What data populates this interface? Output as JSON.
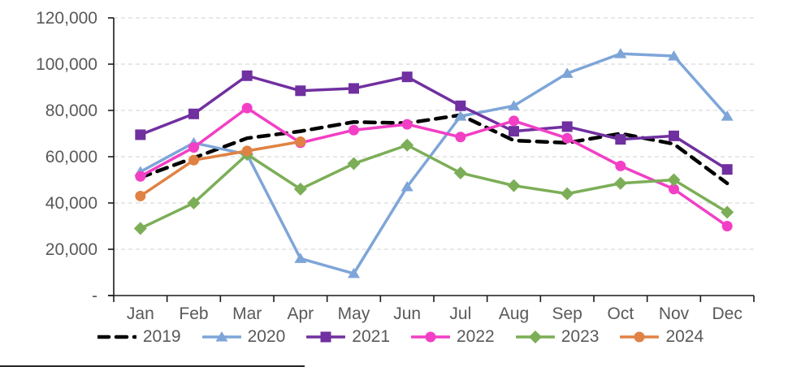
{
  "chart_data": {
    "type": "line",
    "title": "",
    "xlabel": "",
    "ylabel": "",
    "categories": [
      "Jan",
      "Feb",
      "Mar",
      "Apr",
      "May",
      "Jun",
      "Jul",
      "Aug",
      "Sep",
      "Oct",
      "Nov",
      "Dec"
    ],
    "y_tick_labels": [
      "120,000",
      "100,000",
      "80,000",
      "60,000",
      "40,000",
      "20,000",
      "-"
    ],
    "y_tick_values": [
      120000,
      100000,
      80000,
      60000,
      40000,
      20000,
      0
    ],
    "ylim": [
      0,
      120000
    ],
    "grid": "horizontal-dashed",
    "legend_position": "bottom",
    "colors": {
      "grid": "#d9d9d9",
      "axis": "#1a1a1a",
      "tick_label": "#595959"
    },
    "series": [
      {
        "name": "2019",
        "color": "#000000",
        "style": "dashed",
        "marker": "none",
        "values": [
          51000,
          59500,
          68000,
          71000,
          75000,
          74500,
          78000,
          67000,
          66000,
          70000,
          65500,
          48500
        ]
      },
      {
        "name": "2020",
        "color": "#7EA5D8",
        "style": "solid",
        "marker": "triangle",
        "values": [
          53500,
          66000,
          61000,
          16000,
          9500,
          47000,
          77500,
          82000,
          96000,
          104500,
          103500,
          77500
        ]
      },
      {
        "name": "2021",
        "color": "#7030A0",
        "style": "solid",
        "marker": "square",
        "values": [
          69500,
          78500,
          95000,
          88500,
          89500,
          94500,
          82000,
          71000,
          73000,
          67500,
          69000,
          54500
        ]
      },
      {
        "name": "2022",
        "color": "#F23FC5",
        "style": "solid",
        "marker": "circle",
        "values": [
          51500,
          64000,
          81000,
          66000,
          71500,
          74000,
          68500,
          75500,
          68000,
          56000,
          46000,
          30000
        ]
      },
      {
        "name": "2023",
        "color": "#7CAE57",
        "style": "solid",
        "marker": "diamond",
        "values": [
          29000,
          40000,
          61000,
          46000,
          57000,
          65000,
          53000,
          47500,
          44000,
          48500,
          50000,
          36000
        ]
      },
      {
        "name": "2024",
        "color": "#E08244",
        "style": "solid",
        "marker": "circle",
        "values": [
          43000,
          58500,
          62500,
          66500
        ]
      }
    ]
  }
}
